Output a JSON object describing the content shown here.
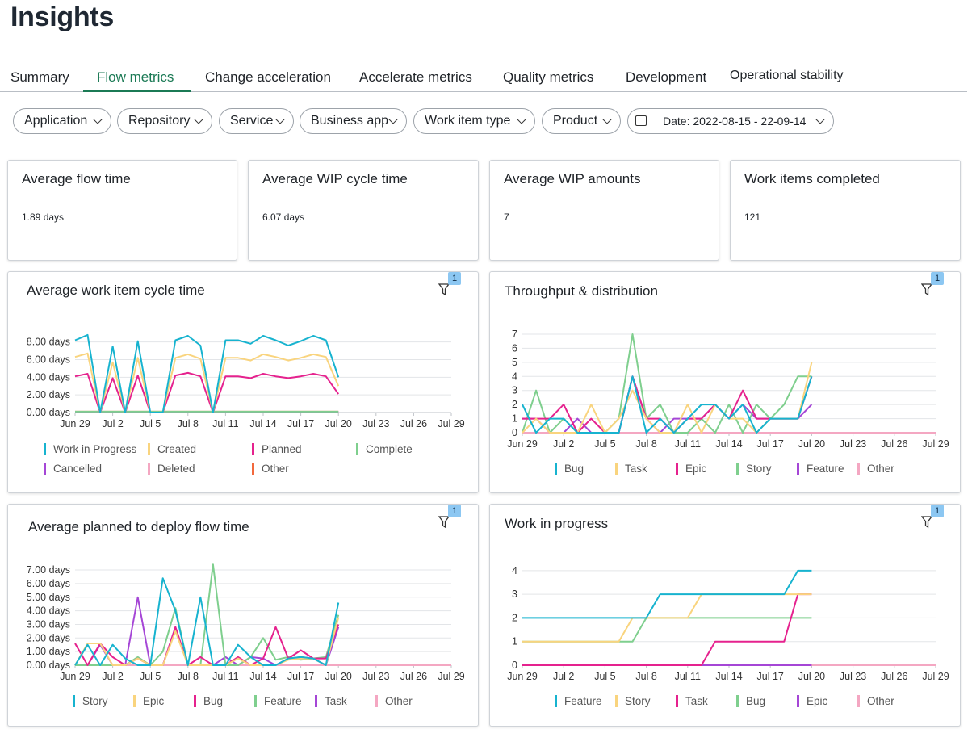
{
  "page": {
    "title": "Insights"
  },
  "tabs": [
    {
      "label": "Summary"
    },
    {
      "label": "Flow metrics",
      "active": true
    },
    {
      "label": "Change acceleration"
    },
    {
      "label": "Accelerate metrics"
    },
    {
      "label": "Quality metrics"
    },
    {
      "label": "Development"
    },
    {
      "label": "Operational stability"
    }
  ],
  "filters": [
    {
      "label": "Application"
    },
    {
      "label": "Repository"
    },
    {
      "label": "Service"
    },
    {
      "label": "Business app"
    },
    {
      "label": "Work item type"
    },
    {
      "label": "Product"
    }
  ],
  "date_filter": {
    "label": "Date: 2022-08-15 - 22-09-14",
    "icon": "calendar-icon"
  },
  "kpis": [
    {
      "title": "Average flow time",
      "value": "1.89 days"
    },
    {
      "title": "Average WIP cycle time",
      "value": "6.07 days"
    },
    {
      "title": "Average WIP amounts",
      "value": "7"
    },
    {
      "title": "Work items completed",
      "value": "121"
    }
  ],
  "filter_badge": "1",
  "colors": {
    "accent": "#1b7a55",
    "teal": "#17b3cf",
    "yellow": "#f9d47e",
    "pink": "#e5228e",
    "green": "#7fcf8e",
    "purple": "#a546d6",
    "light_pink": "#f4a7c2",
    "orange": "#f2683c"
  },
  "chart_data": [
    {
      "type": "line",
      "title": "Average work item cycle time",
      "x_ticks": [
        "Jun 29",
        "Jul 2",
        "Jul 5",
        "Jul 8",
        "Jul 11",
        "Jul 14",
        "Jul 17",
        "Jul 20",
        "Jul 23",
        "Jul 26",
        "Jul 29"
      ],
      "y_ticks": [
        "0.00 days",
        "2.00 days",
        "4.00 days",
        "6.00 days",
        "8.00 days"
      ],
      "ylim": [
        0,
        8.7
      ],
      "xlim": [
        0,
        30
      ],
      "legend_position": "bottom",
      "series": [
        {
          "name": "Work in Progress",
          "color": "#17b3cf",
          "x": [
            0,
            1,
            2,
            3,
            4,
            5,
            6,
            7,
            8,
            9,
            10,
            11,
            12,
            13,
            14,
            15,
            16,
            17,
            18,
            19,
            20,
            21
          ],
          "values": [
            8.2,
            8.8,
            0,
            7.5,
            0,
            8.1,
            0,
            0,
            8.2,
            8.7,
            7.6,
            0,
            8.2,
            8.2,
            7.8,
            8.7,
            8.2,
            7.6,
            8.1,
            8.7,
            8.2,
            4.0
          ]
        },
        {
          "name": "Created",
          "color": "#f9d47e",
          "x": [
            0,
            1,
            2,
            3,
            4,
            5,
            6,
            7,
            8,
            9,
            10,
            11,
            12,
            13,
            14,
            15,
            16,
            17,
            18,
            19,
            20,
            21
          ],
          "values": [
            6.3,
            6.7,
            0,
            5.7,
            0,
            6.2,
            0,
            0,
            6.2,
            6.6,
            6.1,
            0,
            6.2,
            6.2,
            5.9,
            6.6,
            6.3,
            5.9,
            6.2,
            6.6,
            6.3,
            3.0
          ]
        },
        {
          "name": "Planned",
          "color": "#e5228e",
          "x": [
            0,
            1,
            2,
            3,
            4,
            5,
            6,
            7,
            8,
            9,
            10,
            11,
            12,
            13,
            14,
            15,
            16,
            17,
            18,
            19,
            20,
            21
          ],
          "values": [
            4.1,
            4.4,
            0,
            3.9,
            0,
            4.2,
            0,
            0,
            4.2,
            4.5,
            4.1,
            0,
            4.1,
            4.1,
            3.9,
            4.4,
            4.1,
            3.9,
            4.1,
            4.4,
            4.1,
            2.1
          ]
        },
        {
          "name": "Complete",
          "color": "#7fcf8e",
          "x": [
            0,
            21
          ],
          "values": [
            0.1,
            0.1
          ]
        },
        {
          "name": "Cancelled",
          "color": "#a546d6",
          "x": [
            0,
            21
          ],
          "values": [
            0.05,
            0.05
          ]
        },
        {
          "name": "Deleted",
          "color": "#f4a7c2",
          "x": [
            0,
            21
          ],
          "values": [
            0.08,
            0.08
          ]
        },
        {
          "name": "Other",
          "color": "#f2683c",
          "x": [
            0,
            21
          ],
          "values": [
            0.1,
            0.1
          ]
        }
      ]
    },
    {
      "type": "line",
      "title": "Throughput & distribution",
      "x_ticks": [
        "Jun 29",
        "Jul 2",
        "Jul 5",
        "Jul 8",
        "Jul 11",
        "Jul 14",
        "Jul 17",
        "Jul 20",
        "Jul 23",
        "Jul 26",
        "Jul 29"
      ],
      "y_ticks": [
        "0",
        "1",
        "2",
        "3",
        "4",
        "5",
        "6",
        "7"
      ],
      "ylim": [
        0,
        7
      ],
      "xlim": [
        0,
        30
      ],
      "legend_position": "bottom",
      "series": [
        {
          "name": "Bug",
          "color": "#17b3cf",
          "x": [
            0,
            1,
            2,
            3,
            4,
            5,
            6,
            7,
            8,
            9,
            10,
            11,
            12,
            13,
            14,
            15,
            16,
            17,
            18,
            19,
            20,
            21
          ],
          "values": [
            2,
            0,
            1,
            1,
            0,
            0,
            0,
            0,
            4,
            0,
            1,
            0,
            1,
            2,
            2,
            1,
            2,
            0,
            1,
            1,
            1,
            4
          ]
        },
        {
          "name": "Task",
          "color": "#f9d47e",
          "x": [
            0,
            1,
            2,
            3,
            4,
            5,
            6,
            7,
            8,
            9,
            10,
            11,
            12,
            13,
            14,
            15,
            16,
            17,
            18,
            19,
            20,
            21
          ],
          "values": [
            0,
            1,
            0,
            0,
            0,
            2,
            0,
            1,
            3,
            1,
            0,
            0,
            2,
            0,
            2,
            1,
            1,
            0,
            1,
            1,
            1,
            5
          ]
        },
        {
          "name": "Epic",
          "color": "#e5228e",
          "x": [
            0,
            1,
            2,
            3,
            4,
            5,
            6,
            7,
            8,
            9,
            10,
            11,
            12,
            13,
            14,
            15,
            16,
            17,
            18,
            19,
            20,
            21
          ],
          "values": [
            1,
            1,
            1,
            2,
            0,
            1,
            0,
            0,
            4,
            1,
            1,
            0,
            1,
            1,
            2,
            1,
            3,
            1,
            1,
            1,
            1,
            4
          ]
        },
        {
          "name": "Story",
          "color": "#7fcf8e",
          "x": [
            0,
            1,
            2,
            3,
            4,
            5,
            6,
            7,
            8,
            9,
            10,
            11,
            12,
            13,
            14,
            15,
            16,
            17,
            18,
            19,
            20,
            21
          ],
          "values": [
            0,
            3,
            0,
            1,
            0,
            0,
            0,
            1,
            7,
            1,
            2,
            0,
            0,
            1,
            0,
            2,
            0,
            2,
            1,
            2,
            4,
            4
          ]
        },
        {
          "name": "Feature",
          "color": "#a546d6",
          "x": [
            0,
            1,
            2,
            3,
            4,
            5,
            6,
            7,
            8,
            9,
            10,
            11,
            12,
            13,
            14,
            15,
            16,
            17,
            18,
            19,
            20,
            21
          ],
          "values": [
            1,
            1,
            0,
            0,
            1,
            0,
            0,
            0,
            4,
            1,
            0,
            1,
            1,
            1,
            2,
            1,
            2,
            1,
            1,
            1,
            1,
            2
          ]
        },
        {
          "name": "Other",
          "color": "#f4a7c2",
          "x": [
            0,
            30
          ],
          "values": [
            0,
            0
          ]
        }
      ]
    },
    {
      "type": "line",
      "title": "Average planned to deploy flow time",
      "x_ticks": [
        "Jun 29",
        "Jul 2",
        "Jul 5",
        "Jul 8",
        "Jul 11",
        "Jul 14",
        "Jul 17",
        "Jul 20",
        "Jul 23",
        "Jul 26",
        "Jul 29"
      ],
      "y_ticks": [
        "0.00 days",
        "1.00 days",
        "2.00 days",
        "3.00 days",
        "4.00 days",
        "5.00 days",
        "6.00 days",
        "7.00 days"
      ],
      "ylim": [
        0,
        7.3
      ],
      "xlim": [
        0,
        30
      ],
      "legend_position": "bottom",
      "series": [
        {
          "name": "Story",
          "color": "#17b3cf",
          "x": [
            0,
            1,
            2,
            3,
            4,
            5,
            6,
            7,
            8,
            9,
            10,
            11,
            12,
            13,
            14,
            15,
            16,
            17,
            18,
            19,
            20,
            21
          ],
          "values": [
            0,
            1.5,
            0,
            1.5,
            0.5,
            0,
            0,
            6.4,
            4.0,
            0,
            5.0,
            0,
            0,
            1.5,
            0.6,
            0,
            0,
            0.5,
            0.6,
            0.5,
            0,
            4.6
          ]
        },
        {
          "name": "Epic",
          "color": "#f9d47e",
          "x": [
            0,
            1,
            2,
            3,
            4,
            5,
            6,
            7,
            8,
            9,
            10,
            11,
            12,
            13,
            14,
            15,
            16,
            17,
            18,
            19,
            20,
            21
          ],
          "values": [
            0,
            1.6,
            1.6,
            0,
            0,
            0.5,
            0,
            0,
            2.5,
            0,
            0,
            0,
            0,
            0.5,
            0,
            0,
            0,
            0.4,
            0.5,
            0.5,
            0,
            3.5
          ]
        },
        {
          "name": "Bug",
          "color": "#e5228e",
          "x": [
            0,
            1,
            2,
            3,
            4,
            5,
            6,
            7,
            8,
            9,
            10,
            11,
            12,
            13,
            14,
            15,
            16,
            17,
            18,
            19,
            20,
            21
          ],
          "values": [
            1.6,
            0,
            1.6,
            0.6,
            0,
            0.5,
            0,
            0,
            2.8,
            0,
            0.6,
            0,
            0,
            0.6,
            0,
            0.5,
            2.8,
            0.5,
            1.1,
            0.5,
            0.5,
            3.0
          ]
        },
        {
          "name": "Feature",
          "color": "#7fcf8e",
          "x": [
            0,
            1,
            2,
            3,
            4,
            5,
            6,
            7,
            8,
            9,
            10,
            11,
            12,
            13,
            14,
            15,
            16,
            17,
            18,
            19,
            20,
            21
          ],
          "values": [
            0,
            0,
            0,
            0,
            0,
            0.6,
            0,
            1.0,
            4.2,
            0,
            0,
            7.4,
            0,
            0,
            0.6,
            2.0,
            0.4,
            0.6,
            0.4,
            0.5,
            0.6,
            3.7
          ]
        },
        {
          "name": "Task",
          "color": "#a546d6",
          "x": [
            0,
            1,
            2,
            3,
            4,
            5,
            6,
            7,
            8,
            9,
            10,
            11,
            12,
            13,
            14,
            15,
            16,
            17,
            18,
            19,
            20,
            21
          ],
          "values": [
            0,
            0,
            1.5,
            0,
            0,
            5.0,
            0,
            0,
            2.8,
            0,
            0,
            0,
            0.6,
            0,
            0.6,
            0.5,
            0,
            0.5,
            0.6,
            0.5,
            0,
            2.8
          ]
        },
        {
          "name": "Other",
          "color": "#f4a7c2",
          "x": [
            0,
            30
          ],
          "values": [
            0,
            0
          ]
        }
      ]
    },
    {
      "type": "line",
      "title": "Work in progress",
      "x_ticks": [
        "Jun 29",
        "Jul 2",
        "Jul 5",
        "Jul 8",
        "Jul 11",
        "Jul 14",
        "Jul 17",
        "Jul 20",
        "Jul 23",
        "Jul 26",
        "Jul 29"
      ],
      "y_ticks": [
        "0",
        "1",
        "2",
        "3",
        "4"
      ],
      "ylim": [
        0,
        4.2
      ],
      "xlim": [
        0,
        30
      ],
      "legend_position": "bottom",
      "series": [
        {
          "name": "Feature",
          "color": "#17b3cf",
          "x": [
            0,
            8,
            9,
            10,
            12,
            13,
            19,
            20,
            21
          ],
          "values": [
            2,
            2,
            2,
            3,
            3,
            3,
            3,
            4,
            4
          ]
        },
        {
          "name": "Story",
          "color": "#f9d47e",
          "x": [
            0,
            7,
            8,
            12,
            13,
            18,
            19,
            20,
            21
          ],
          "values": [
            1,
            1,
            2,
            2,
            3,
            3,
            3,
            3,
            3
          ]
        },
        {
          "name": "Task",
          "color": "#e5228e",
          "x": [
            0,
            13,
            14,
            19,
            20,
            21
          ],
          "values": [
            0,
            0,
            1,
            1,
            3,
            3
          ]
        },
        {
          "name": "Bug",
          "color": "#7fcf8e",
          "x": [
            0,
            8,
            9,
            21
          ],
          "values": [
            1,
            1,
            2,
            2
          ]
        },
        {
          "name": "Epic",
          "color": "#a546d6",
          "x": [
            0,
            21
          ],
          "values": [
            0,
            0
          ]
        },
        {
          "name": "Other",
          "color": "#f4a7c2",
          "x": [
            0,
            30
          ],
          "values": [
            0,
            0
          ]
        }
      ]
    }
  ]
}
